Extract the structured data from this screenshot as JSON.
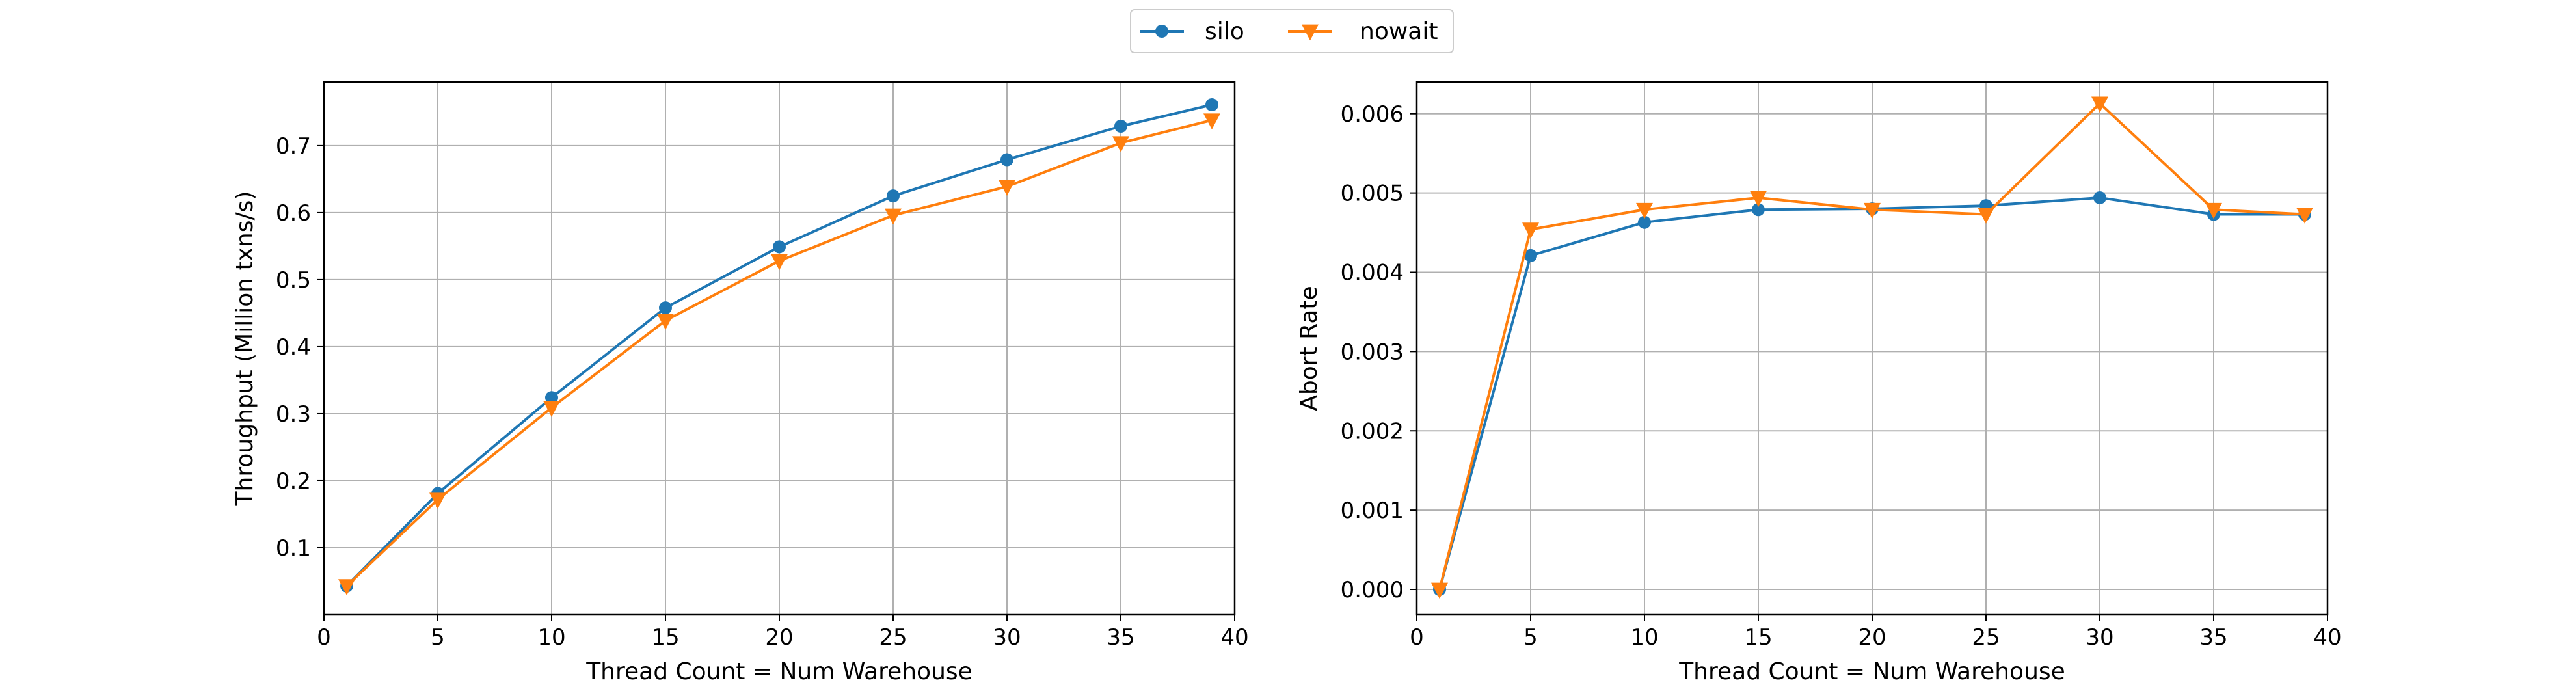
{
  "legend": {
    "items": [
      {
        "label": "silo",
        "color": "#1f77b4",
        "marker": "circle"
      },
      {
        "label": "nowait",
        "color": "#ff7f0e",
        "marker": "triangle-down"
      }
    ],
    "placement": "top-center"
  },
  "chart_data": [
    {
      "type": "line",
      "xlabel": "Thread Count = Num Warehouse",
      "ylabel": "Throughput (Million txns/s)",
      "xlim": [
        0.0,
        40.0
      ],
      "ylim": [
        0.0,
        0.795
      ],
      "xticks": [
        0,
        5,
        10,
        15,
        20,
        25,
        30,
        35,
        40
      ],
      "yticks": [
        0.1,
        0.2,
        0.3,
        0.4,
        0.5,
        0.6,
        0.7
      ],
      "grid": true,
      "x": [
        1,
        5,
        10,
        15,
        20,
        25,
        30,
        35,
        39
      ],
      "series": [
        {
          "name": "silo",
          "color": "#1f77b4",
          "marker": "circle",
          "values": [
            0.043,
            0.181,
            0.324,
            0.458,
            0.549,
            0.625,
            0.679,
            0.729,
            0.761
          ]
        },
        {
          "name": "nowait",
          "color": "#ff7f0e",
          "marker": "triangle-down",
          "values": [
            0.043,
            0.172,
            0.309,
            0.439,
            0.528,
            0.596,
            0.639,
            0.704,
            0.738
          ]
        }
      ]
    },
    {
      "type": "line",
      "xlabel": "Thread Count = Num Warehouse",
      "ylabel": "Abort Rate",
      "xlim": [
        0.0,
        40.0
      ],
      "ylim": [
        -0.00032,
        0.0064
      ],
      "xticks": [
        0,
        5,
        10,
        15,
        20,
        25,
        30,
        35,
        40
      ],
      "yticks": [
        0.0,
        0.001,
        0.002,
        0.003,
        0.004,
        0.005,
        0.006
      ],
      "ytick_labels": [
        "0.000",
        "0.001",
        "0.002",
        "0.003",
        "0.004",
        "0.005",
        "0.006"
      ],
      "grid": true,
      "x": [
        1,
        5,
        10,
        15,
        20,
        25,
        30,
        35,
        39
      ],
      "series": [
        {
          "name": "silo",
          "color": "#1f77b4",
          "marker": "circle",
          "values": [
            0.0,
            0.00421,
            0.00463,
            0.00479,
            0.0048,
            0.00484,
            0.00494,
            0.00473,
            0.00473
          ]
        },
        {
          "name": "nowait",
          "color": "#ff7f0e",
          "marker": "triangle-down",
          "values": [
            0.0,
            0.00454,
            0.00479,
            0.00494,
            0.00479,
            0.00473,
            0.00613,
            0.00479,
            0.00473
          ]
        }
      ]
    }
  ]
}
